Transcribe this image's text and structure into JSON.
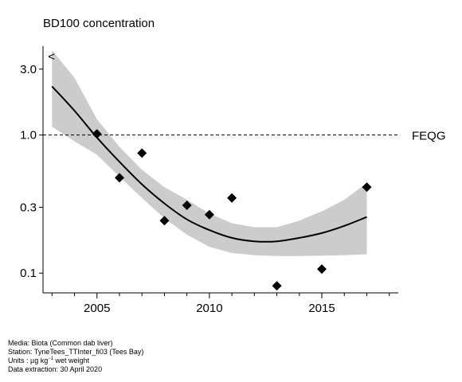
{
  "chart_data": {
    "type": "scatter",
    "title": "BD100 concentration",
    "xlabel": "",
    "ylabel": "",
    "y_scale": "log",
    "xlim": [
      2002.6,
      2018.4
    ],
    "ylim": [
      0.072,
      4.4
    ],
    "x_ticks": [
      2005,
      2010,
      2015
    ],
    "x_tick_labels": [
      "2005",
      "2010",
      "2015"
    ],
    "y_ticks": [
      0.1,
      0.3,
      1.0,
      3.0
    ],
    "y_tick_labels": [
      "0.1",
      "0.3",
      "1.0",
      "3.0"
    ],
    "grid": false,
    "censor_marker": "<",
    "censor_marker_x": 2003,
    "points": [
      {
        "x": 2005,
        "y": 1.02
      },
      {
        "x": 2006,
        "y": 0.49
      },
      {
        "x": 2007,
        "y": 0.74
      },
      {
        "x": 2008,
        "y": 0.24
      },
      {
        "x": 2009,
        "y": 0.31
      },
      {
        "x": 2010,
        "y": 0.265
      },
      {
        "x": 2011,
        "y": 0.35
      },
      {
        "x": 2013,
        "y": 0.081
      },
      {
        "x": 2015,
        "y": 0.107
      },
      {
        "x": 2017,
        "y": 0.42
      }
    ],
    "trend": {
      "x": [
        2003,
        2004,
        2005,
        2006,
        2007,
        2008,
        2009,
        2010,
        2011,
        2012,
        2013,
        2014,
        2015,
        2016,
        2017
      ],
      "fit": [
        2.25,
        1.5,
        0.96,
        0.64,
        0.44,
        0.32,
        0.245,
        0.205,
        0.18,
        0.17,
        0.17,
        0.18,
        0.195,
        0.22,
        0.255
      ],
      "lower": [
        1.15,
        0.9,
        0.72,
        0.5,
        0.35,
        0.25,
        0.19,
        0.155,
        0.14,
        0.135,
        0.133,
        0.133,
        0.134,
        0.135,
        0.137
      ],
      "upper": [
        4.1,
        2.6,
        1.3,
        0.82,
        0.56,
        0.42,
        0.34,
        0.27,
        0.23,
        0.215,
        0.215,
        0.24,
        0.28,
        0.34,
        0.45
      ]
    },
    "reference_line": {
      "y": 1.0,
      "label": "FEQG"
    },
    "colors": {
      "points": "#000000",
      "trend_line": "#000000",
      "band": "#cccccc",
      "reference_line": "#000000"
    }
  },
  "footer": {
    "media": "Media: Biota (Common dab liver)",
    "station": "Station: TyneTees_TTInter_fi03 (Tees Bay)",
    "units_prefix": "Units : µg kg",
    "units_sup": "−1",
    "units_suffix": " wet weight",
    "extraction": "Data extraction: 30 April 2020"
  }
}
